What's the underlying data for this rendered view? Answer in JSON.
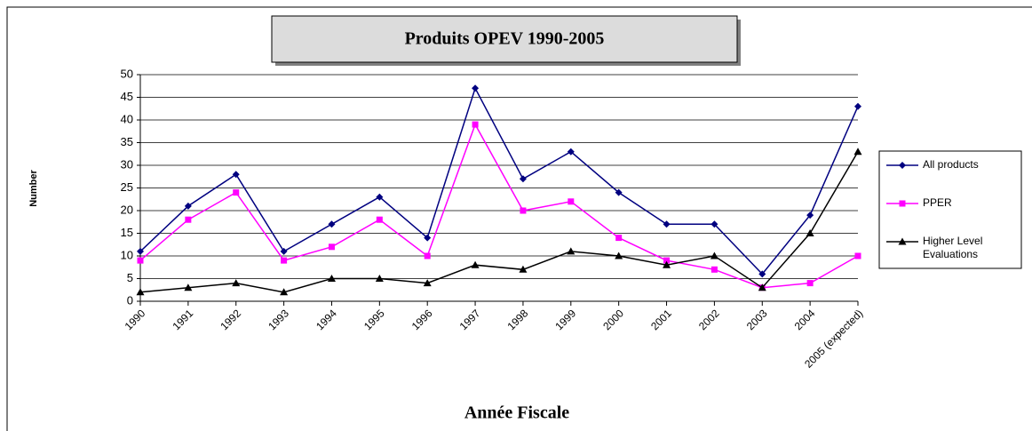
{
  "chart_data": {
    "type": "line",
    "title": "Produits OPEV 1990-2005",
    "x_label": "Année Fiscale",
    "y_label": "Number",
    "categories": [
      "1990",
      "1991",
      "1992",
      "1993",
      "1994",
      "1995",
      "1996",
      "1997",
      "1998",
      "1999",
      "2000",
      "2001",
      "2002",
      "2003",
      "2004",
      "2005 (expected)"
    ],
    "series": [
      {
        "name": "All products",
        "color": "#000080",
        "marker": "diamond",
        "values": [
          11,
          21,
          28,
          11,
          17,
          23,
          14,
          47,
          27,
          33,
          24,
          17,
          17,
          6,
          19,
          43
        ]
      },
      {
        "name": "PPER",
        "color": "#ff00ff",
        "marker": "square",
        "values": [
          9,
          18,
          24,
          9,
          12,
          18,
          10,
          39,
          20,
          22,
          14,
          9,
          7,
          3,
          4,
          10
        ]
      },
      {
        "name": "Higher Level Evaluations",
        "color": "#000000",
        "marker": "triangle",
        "values": [
          2,
          3,
          4,
          2,
          5,
          5,
          4,
          8,
          7,
          11,
          10,
          8,
          10,
          3,
          15,
          33
        ]
      }
    ],
    "ylim": [
      0,
      50
    ],
    "yticks": [
      0,
      5,
      10,
      15,
      20,
      25,
      30,
      35,
      40,
      45,
      50
    ],
    "grid": true,
    "legend": "right"
  }
}
